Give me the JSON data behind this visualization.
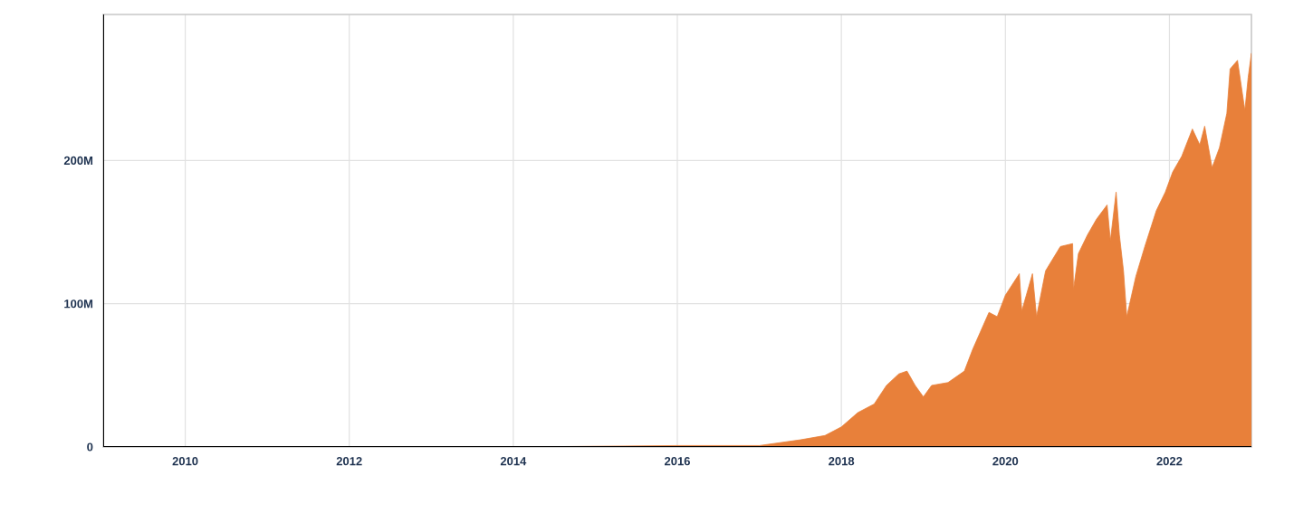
{
  "chart_data": {
    "type": "area",
    "color": "#e8803a",
    "grid": true,
    "xlim": [
      2009,
      2023
    ],
    "xticks": [
      2010,
      2012,
      2014,
      2016,
      2018,
      2020,
      2022
    ],
    "ylim": [
      0,
      302
    ],
    "yticks": [
      {
        "value": 0,
        "label": "0"
      },
      {
        "value": 100,
        "label": "100M"
      },
      {
        "value": 200,
        "label": "200M"
      }
    ],
    "x": [
      2009,
      2012,
      2014,
      2016,
      2017,
      2017.5,
      2017.8,
      2018,
      2018.2,
      2018.4,
      2018.55,
      2018.7,
      2018.8,
      2018.9,
      2019.0,
      2019.1,
      2019.3,
      2019.5,
      2019.6,
      2019.8,
      2019.9,
      2020.0,
      2020.17,
      2020.2,
      2020.33,
      2020.38,
      2020.49,
      2020.67,
      2020.82,
      2020.83,
      2020.89,
      2021.0,
      2021.11,
      2021.24,
      2021.28,
      2021.35,
      2021.39,
      2021.44,
      2021.48,
      2021.59,
      2021.7,
      2021.84,
      2021.95,
      2022.04,
      2022.15,
      2022.28,
      2022.37,
      2022.43,
      2022.52,
      2022.61,
      2022.7,
      2022.74,
      2022.83,
      2022.92,
      2022.96,
      2023.0
    ],
    "values": [
      0,
      0,
      0,
      1,
      1,
      5,
      8,
      14,
      24,
      30,
      43,
      51,
      53,
      43,
      35,
      43,
      45,
      53,
      68,
      94,
      91,
      106,
      121,
      95,
      121,
      91,
      123,
      140,
      142,
      110,
      135,
      148,
      159,
      169,
      144,
      178,
      148,
      123,
      91,
      119,
      140,
      165,
      178,
      192,
      203,
      222,
      211,
      224,
      195,
      209,
      233,
      264,
      270,
      235,
      258,
      275
    ]
  }
}
